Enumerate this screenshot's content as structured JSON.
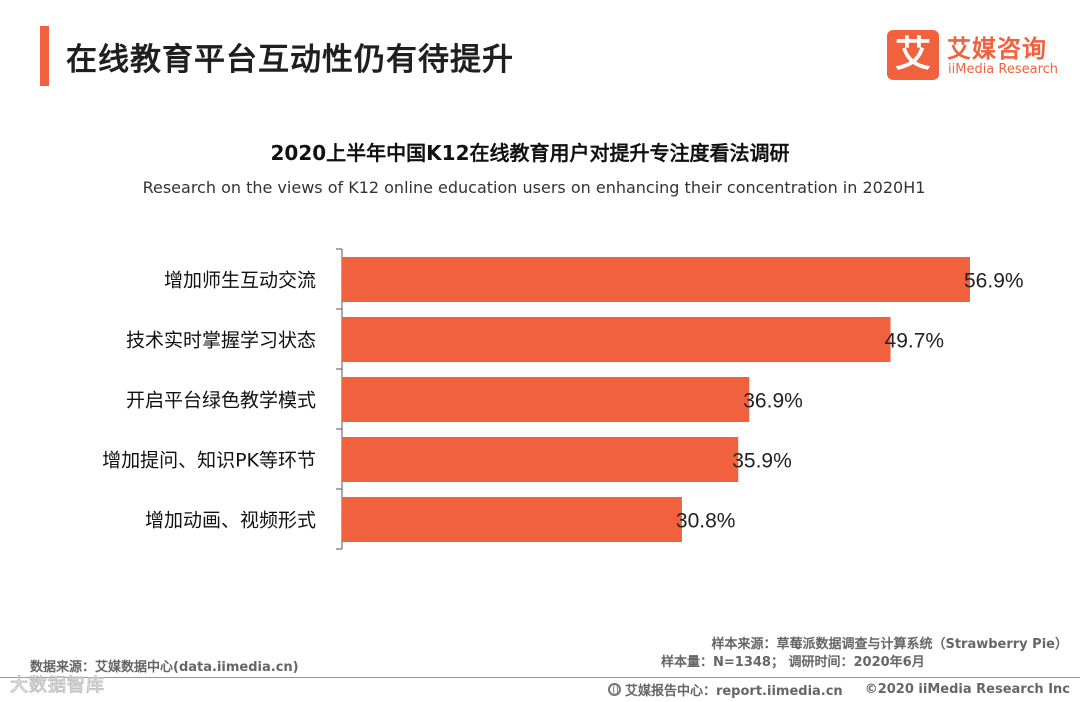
{
  "header": {
    "title": "在线教育平台互动性仍有待提升"
  },
  "logo": {
    "mark": "艾",
    "cn": "艾媒咨询",
    "en": "iiMedia Research"
  },
  "chart_data": {
    "type": "bar",
    "orientation": "horizontal",
    "title": "2020上半年中国K12在线教育用户对提升专注度看法调研",
    "subtitle": "Research on the views of K12 online education users on enhancing their concentration in 2020H1",
    "categories": [
      "增加师生互动交流",
      "技术实时掌握学习状态",
      "开启平台绿色教学模式",
      "增加提问、知识PK等环节",
      "增加动画、视频形式"
    ],
    "values": [
      56.9,
      49.7,
      36.9,
      35.9,
      30.8
    ],
    "value_labels": [
      "56.9%",
      "49.7%",
      "36.9%",
      "35.9%",
      "30.8%"
    ],
    "unit": "%",
    "xlim": [
      0,
      56.9
    ],
    "bar_color": "#f2613d"
  },
  "footer": {
    "data_source": "数据来源：艾媒数据中心(data.iimedia.cn)",
    "sample_source": "样本来源：草莓派数据调查与计算系统（Strawberry Pie）",
    "sample_info": "样本量：N=1348； 调研时间：2020年6月",
    "report_center": "艾媒报告中心：report.iimedia.cn",
    "copyright": "©2020  iiMedia Research  Inc",
    "watermark": "大数据智库"
  }
}
